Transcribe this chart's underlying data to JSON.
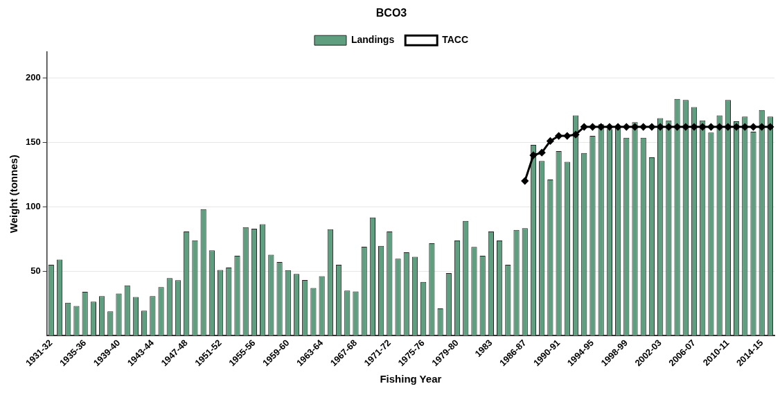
{
  "chart_data": {
    "type": "bar",
    "title": "BCO3",
    "xlabel": "Fishing Year",
    "ylabel": "Weight (tonnes)",
    "categories": [
      "1931-32",
      null,
      null,
      null,
      "1935-36",
      null,
      null,
      null,
      "1939-40",
      null,
      null,
      null,
      "1943-44",
      null,
      null,
      null,
      "1947-48",
      null,
      null,
      null,
      "1951-52",
      null,
      null,
      null,
      "1955-56",
      null,
      null,
      null,
      "1959-60",
      null,
      null,
      null,
      "1963-64",
      null,
      null,
      null,
      "1967-68",
      null,
      null,
      null,
      "1971-72",
      null,
      null,
      null,
      "1975-76",
      null,
      null,
      null,
      "1979-80",
      null,
      null,
      null,
      "1983",
      null,
      null,
      null,
      "1986-87",
      null,
      null,
      null,
      "1990-91",
      null,
      null,
      null,
      "1994-95",
      null,
      null,
      null,
      "1998-99",
      null,
      null,
      null,
      "2002-03",
      null,
      null,
      null,
      "2006-07",
      null,
      null,
      null,
      "2010-11",
      null,
      null,
      null,
      "2014-15",
      null
    ],
    "series": [
      {
        "name": "Landings",
        "color": "#5f9e7e",
        "values": [
          55,
          59,
          25.6,
          23,
          34,
          26.4,
          30.6,
          18.8,
          32.6,
          39,
          30,
          19.4,
          30.6,
          37.6,
          44.6,
          43,
          80.8,
          74,
          98.1,
          66.1,
          51,
          52.9,
          62,
          84.1,
          82.9,
          86.4,
          62.8,
          57.2,
          50.8,
          47.9,
          43.2,
          37,
          46.1,
          82.6,
          55,
          34.9,
          34.3,
          69,
          91.7,
          69.6,
          80.8,
          59.7,
          64.7,
          61.2,
          41.7,
          71.7,
          21.1,
          48.6,
          73.8,
          89,
          68.8,
          62,
          80.8,
          73.8,
          55,
          82,
          83.3,
          148.1,
          135.5,
          121.1,
          143.2,
          134.9,
          170.9,
          141.7,
          155,
          164,
          160.3,
          162,
          153.5,
          165.7,
          153.5,
          138.4,
          168.8,
          167,
          183.7,
          182.9,
          177.3,
          167,
          157.6,
          170.9,
          182.9,
          166.3,
          170,
          158.3,
          175,
          170
        ]
      },
      {
        "name": "TACC",
        "type": "line",
        "color": "#000000",
        "marker": "diamond",
        "line_style": "solid",
        "values": [
          null,
          null,
          null,
          null,
          null,
          null,
          null,
          null,
          null,
          null,
          null,
          null,
          null,
          null,
          null,
          null,
          null,
          null,
          null,
          null,
          null,
          null,
          null,
          null,
          null,
          null,
          null,
          null,
          null,
          null,
          null,
          null,
          null,
          null,
          null,
          null,
          null,
          null,
          null,
          null,
          null,
          null,
          null,
          null,
          null,
          null,
          null,
          null,
          null,
          null,
          null,
          null,
          null,
          null,
          null,
          null,
          120,
          140,
          142,
          151,
          155,
          155,
          156,
          162,
          162,
          162,
          162,
          162,
          162,
          162,
          162,
          162,
          162,
          162,
          162,
          162,
          162,
          162,
          162,
          162,
          162,
          162,
          162,
          162,
          162,
          162
        ]
      }
    ],
    "ylim": [
      0,
      220
    ],
    "yticks": [
      50,
      100,
      150,
      200
    ],
    "grid": "y",
    "legend": "top"
  }
}
